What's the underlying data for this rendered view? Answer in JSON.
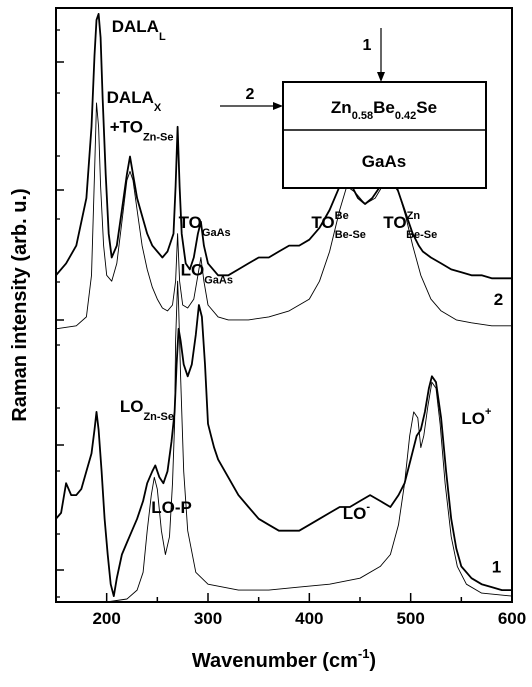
{
  "chart_data": {
    "type": "line",
    "title": "",
    "xlabel": "Wavenumber (cm",
    "xlabel_sup": "-1",
    "xlabel_end": ")",
    "ylabel": "Raman intensity (arb. u.)",
    "xlim": [
      150,
      600
    ],
    "ylim": [
      0,
      100
    ],
    "grid": false,
    "x_ticks": [
      {
        "value": 200,
        "label": "200"
      },
      {
        "value": 300,
        "label": "300"
      },
      {
        "value": 400,
        "label": "400"
      },
      {
        "value": 500,
        "label": "500"
      },
      {
        "value": 600,
        "label": "600"
      }
    ],
    "series": [
      {
        "name": "2",
        "role": "measured",
        "points": [
          [
            150,
            55
          ],
          [
            160,
            57
          ],
          [
            170,
            60
          ],
          [
            180,
            68
          ],
          [
            185,
            80
          ],
          [
            188,
            92
          ],
          [
            190,
            98
          ],
          [
            192,
            99
          ],
          [
            194,
            95
          ],
          [
            196,
            85
          ],
          [
            199,
            72
          ],
          [
            202,
            62
          ],
          [
            205,
            58
          ],
          [
            210,
            60
          ],
          [
            215,
            66
          ],
          [
            220,
            72
          ],
          [
            223,
            75
          ],
          [
            226,
            72
          ],
          [
            230,
            68
          ],
          [
            235,
            65
          ],
          [
            240,
            62
          ],
          [
            245,
            60
          ],
          [
            250,
            59
          ],
          [
            255,
            58
          ],
          [
            260,
            59
          ],
          [
            266,
            62
          ],
          [
            268,
            70
          ],
          [
            270,
            80
          ],
          [
            272,
            70
          ],
          [
            274,
            62
          ],
          [
            278,
            57
          ],
          [
            282,
            56
          ],
          [
            286,
            58
          ],
          [
            290,
            62
          ],
          [
            293,
            64
          ],
          [
            296,
            60
          ],
          [
            300,
            57
          ],
          [
            310,
            55
          ],
          [
            320,
            55
          ],
          [
            330,
            56
          ],
          [
            340,
            57
          ],
          [
            350,
            58
          ],
          [
            360,
            58
          ],
          [
            370,
            59
          ],
          [
            380,
            60
          ],
          [
            390,
            60
          ],
          [
            400,
            61
          ],
          [
            410,
            63
          ],
          [
            420,
            66
          ],
          [
            430,
            70
          ],
          [
            436,
            72
          ],
          [
            442,
            70
          ],
          [
            448,
            68
          ],
          [
            455,
            67
          ],
          [
            462,
            68
          ],
          [
            470,
            70
          ],
          [
            478,
            72
          ],
          [
            484,
            71
          ],
          [
            490,
            68
          ],
          [
            496,
            65
          ],
          [
            502,
            62
          ],
          [
            508,
            60
          ],
          [
            512,
            59
          ],
          [
            520,
            58
          ],
          [
            530,
            57
          ],
          [
            540,
            56
          ],
          [
            550,
            55.5
          ],
          [
            560,
            55
          ],
          [
            570,
            55
          ],
          [
            580,
            54.5
          ],
          [
            590,
            54.5
          ],
          [
            600,
            54.5
          ]
        ]
      },
      {
        "name": "2 fit",
        "role": "fit",
        "points": [
          [
            150,
            46
          ],
          [
            170,
            46.5
          ],
          [
            180,
            48
          ],
          [
            185,
            55
          ],
          [
            188,
            72
          ],
          [
            190,
            84
          ],
          [
            192,
            80
          ],
          [
            194,
            70
          ],
          [
            197,
            60
          ],
          [
            200,
            55
          ],
          [
            205,
            54
          ],
          [
            210,
            57
          ],
          [
            215,
            64
          ],
          [
            220,
            71
          ],
          [
            223,
            72.5
          ],
          [
            226,
            71
          ],
          [
            230,
            66
          ],
          [
            235,
            60
          ],
          [
            240,
            56
          ],
          [
            245,
            53
          ],
          [
            250,
            51
          ],
          [
            255,
            49.5
          ],
          [
            260,
            49
          ],
          [
            265,
            50
          ],
          [
            268,
            54
          ],
          [
            270,
            62
          ],
          [
            272,
            54
          ],
          [
            275,
            50
          ],
          [
            280,
            49.5
          ],
          [
            286,
            51
          ],
          [
            290,
            55
          ],
          [
            293,
            58
          ],
          [
            296,
            54
          ],
          [
            300,
            50
          ],
          [
            310,
            48
          ],
          [
            320,
            47.5
          ],
          [
            340,
            47.5
          ],
          [
            360,
            48
          ],
          [
            380,
            49
          ],
          [
            400,
            51
          ],
          [
            410,
            54
          ],
          [
            420,
            59
          ],
          [
            430,
            66
          ],
          [
            437,
            70
          ],
          [
            445,
            69
          ],
          [
            455,
            67
          ],
          [
            465,
            68
          ],
          [
            472,
            70
          ],
          [
            480,
            71
          ],
          [
            488,
            69
          ],
          [
            495,
            65
          ],
          [
            502,
            60
          ],
          [
            510,
            55
          ],
          [
            520,
            51
          ],
          [
            530,
            49
          ],
          [
            545,
            47.5
          ],
          [
            560,
            47
          ],
          [
            580,
            46.5
          ],
          [
            600,
            46.5
          ]
        ]
      },
      {
        "name": "1",
        "role": "measured",
        "points": [
          [
            150,
            14
          ],
          [
            155,
            15
          ],
          [
            160,
            20
          ],
          [
            165,
            18
          ],
          [
            170,
            18
          ],
          [
            175,
            19
          ],
          [
            180,
            22
          ],
          [
            185,
            25
          ],
          [
            188,
            29
          ],
          [
            190,
            32
          ],
          [
            192,
            29
          ],
          [
            195,
            22
          ],
          [
            198,
            14
          ],
          [
            201,
            8
          ],
          [
            204,
            3
          ],
          [
            207,
            1
          ],
          [
            210,
            4
          ],
          [
            215,
            8
          ],
          [
            220,
            10
          ],
          [
            225,
            12
          ],
          [
            230,
            14
          ],
          [
            236,
            17
          ],
          [
            240,
            20
          ],
          [
            245,
            22
          ],
          [
            248,
            23
          ],
          [
            252,
            21
          ],
          [
            256,
            20
          ],
          [
            260,
            22
          ],
          [
            264,
            27
          ],
          [
            267,
            32
          ],
          [
            269,
            40
          ],
          [
            271,
            46
          ],
          [
            273,
            44
          ],
          [
            276,
            40
          ],
          [
            280,
            38
          ],
          [
            284,
            40
          ],
          [
            288,
            45
          ],
          [
            291,
            50
          ],
          [
            294,
            48
          ],
          [
            297,
            40
          ],
          [
            300,
            30
          ],
          [
            303,
            28
          ],
          [
            306,
            26
          ],
          [
            310,
            24
          ],
          [
            320,
            21
          ],
          [
            330,
            18
          ],
          [
            340,
            16
          ],
          [
            350,
            14
          ],
          [
            360,
            13
          ],
          [
            370,
            12
          ],
          [
            380,
            12
          ],
          [
            390,
            12
          ],
          [
            400,
            13
          ],
          [
            410,
            14
          ],
          [
            420,
            15
          ],
          [
            430,
            16
          ],
          [
            440,
            16
          ],
          [
            450,
            17
          ],
          [
            460,
            18
          ],
          [
            470,
            17
          ],
          [
            480,
            16
          ],
          [
            488,
            18
          ],
          [
            494,
            20
          ],
          [
            500,
            24
          ],
          [
            506,
            28
          ],
          [
            510,
            29
          ],
          [
            514,
            32
          ],
          [
            518,
            36
          ],
          [
            521,
            38
          ],
          [
            525,
            37
          ],
          [
            530,
            31
          ],
          [
            535,
            22
          ],
          [
            540,
            14
          ],
          [
            545,
            9
          ],
          [
            550,
            6
          ],
          [
            560,
            4
          ],
          [
            570,
            3
          ],
          [
            580,
            2.5
          ],
          [
            590,
            2
          ],
          [
            600,
            2
          ]
        ]
      },
      {
        "name": "1 fit",
        "role": "fit",
        "points": [
          [
            150,
            0
          ],
          [
            200,
            0
          ],
          [
            220,
            0.5
          ],
          [
            230,
            2
          ],
          [
            236,
            5
          ],
          [
            240,
            12
          ],
          [
            244,
            18
          ],
          [
            247,
            21
          ],
          [
            250,
            19
          ],
          [
            254,
            12
          ],
          [
            258,
            8
          ],
          [
            262,
            11
          ],
          [
            265,
            20
          ],
          [
            267,
            30
          ],
          [
            268,
            44
          ],
          [
            270,
            54
          ],
          [
            271,
            50
          ],
          [
            273,
            38
          ],
          [
            276,
            22
          ],
          [
            280,
            12
          ],
          [
            288,
            5
          ],
          [
            300,
            3
          ],
          [
            330,
            2
          ],
          [
            360,
            2
          ],
          [
            390,
            2.5
          ],
          [
            420,
            3
          ],
          [
            450,
            4
          ],
          [
            470,
            6
          ],
          [
            480,
            8
          ],
          [
            488,
            13
          ],
          [
            494,
            20
          ],
          [
            499,
            28
          ],
          [
            503,
            32
          ],
          [
            507,
            31
          ],
          [
            510,
            26
          ],
          [
            513,
            28
          ],
          [
            517,
            33
          ],
          [
            521,
            37
          ],
          [
            525,
            36
          ],
          [
            529,
            30
          ],
          [
            534,
            20
          ],
          [
            540,
            11
          ],
          [
            546,
            6
          ],
          [
            555,
            3
          ],
          [
            570,
            1.5
          ],
          [
            600,
            1
          ]
        ]
      }
    ],
    "annotations": [
      {
        "text": "DALA",
        "sub": "L",
        "sup": "",
        "x": 205,
        "y": 96
      },
      {
        "text": "DALA",
        "sub": "X",
        "sup": "",
        "x": 200,
        "y": 84
      },
      {
        "text": "+TO",
        "sub": "Zn-Se",
        "sup": "",
        "x": 203,
        "y": 79
      },
      {
        "text": "TO",
        "sub": "GaAs",
        "sup": "",
        "x": 271,
        "y": 63
      },
      {
        "text": "LO",
        "sub": "GaAs",
        "sup": "",
        "x": 273,
        "y": 55
      },
      {
        "text": "TO",
        "sub": "Be-Se",
        "sup": "Be",
        "x": 402,
        "y": 63
      },
      {
        "text": "TO",
        "sub": "Be-Se",
        "sup": "Zn",
        "x": 473,
        "y": 63
      },
      {
        "text": "2",
        "sub": "",
        "sup": "",
        "x": 582,
        "y": 50
      },
      {
        "text": "LO",
        "sub": "Zn-Se",
        "sup": "",
        "x": 213,
        "y": 32
      },
      {
        "text": "LO-P",
        "sub": "",
        "sup": "",
        "x": 244,
        "y": 15
      },
      {
        "text": "LO",
        "sub": "",
        "sup": "-",
        "x": 433,
        "y": 14
      },
      {
        "text": "LO",
        "sub": "",
        "sup": "+",
        "x": 550,
        "y": 30
      },
      {
        "text": "1",
        "sub": "",
        "sup": "",
        "x": 580,
        "y": 5
      }
    ],
    "inset": {
      "layer_top": {
        "text_parts": [
          {
            "t": "Zn",
            "k": "n"
          },
          {
            "t": "0.58",
            "k": "sub"
          },
          {
            "t": "Be",
            "k": "n"
          },
          {
            "t": "0.42",
            "k": "sub"
          },
          {
            "t": "Se",
            "k": "n"
          }
        ]
      },
      "layer_bottom": "GaAs",
      "arrow_1_label": "1",
      "arrow_2_label": "2"
    }
  }
}
